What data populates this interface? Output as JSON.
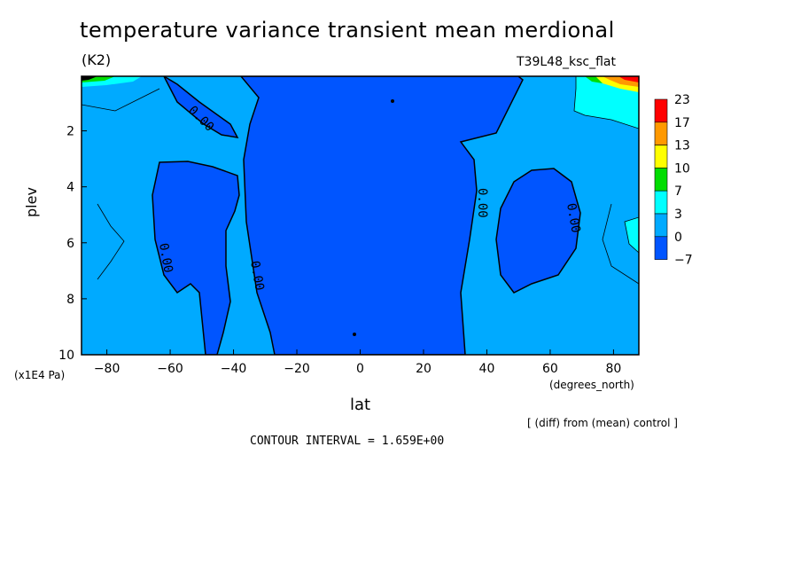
{
  "title": "temperature variance transient mean merdional",
  "units": "(K2)",
  "dataset": "T39L48_ksc_flat",
  "y_axis_title": "plev",
  "y_units": "(x1E4 Pa)",
  "x_axis_title": "lat",
  "x_units": "(degrees_north)",
  "diff_note": "[ (diff) from (mean) control ]",
  "contour_interval": "CONTOUR INTERVAL = 1.659E+00",
  "chart_data": {
    "type": "heatmap",
    "xlabel": "lat",
    "ylabel": "plev",
    "xlim": [
      -88,
      88
    ],
    "ylim": [
      0.05,
      10
    ],
    "x_ticks": [
      -80,
      -60,
      -40,
      -20,
      0,
      20,
      40,
      60,
      80
    ],
    "y_ticks": [
      2,
      4,
      6,
      8,
      10
    ],
    "y_inverted": true,
    "contour_labels": [
      "0.00",
      "0.00",
      "0.00",
      "0.00",
      "0.00",
      "0.00"
    ],
    "colorbar": {
      "levels": [
        "23",
        "17",
        "13",
        "10",
        "7",
        "3",
        "0",
        "-7"
      ],
      "colors": [
        "#ff0000",
        "#ff9900",
        "#ffff00",
        "#00dd00",
        "#00ffff",
        "#00aaff",
        "#0055ff"
      ]
    },
    "colors": {
      "band_low": "#0055ff",
      "band_mid": "#00aaff",
      "band_high": "#00ffff"
    }
  }
}
